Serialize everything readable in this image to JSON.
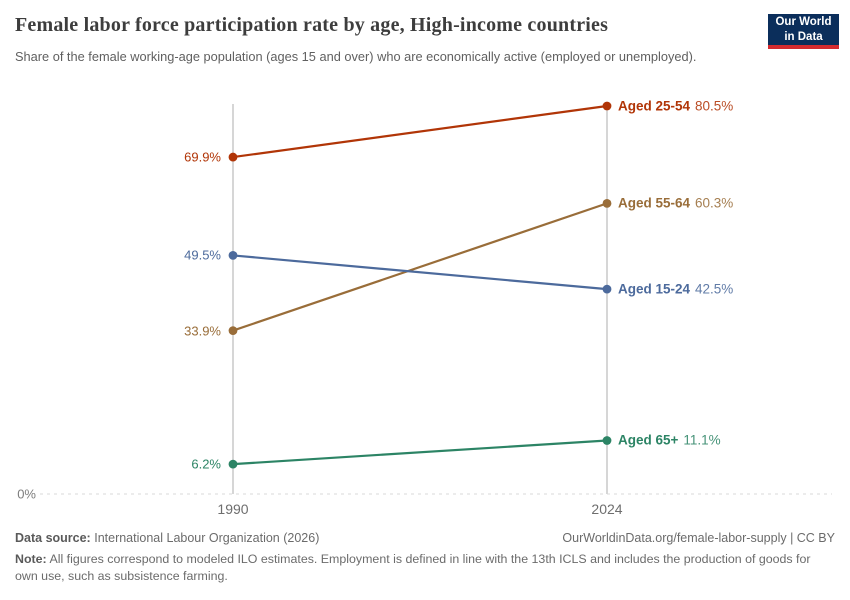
{
  "header": {
    "title": "Female labor force participation rate by age, High-income countries",
    "subtitle": "Share of the female working-age population (ages 15 and over) who are economically active (employed or unemployed)."
  },
  "logo": {
    "line1": "Our World",
    "line2": "in Data",
    "bg_color": "#0b2e5b",
    "bar_color": "#d42b2f"
  },
  "chart_data": {
    "type": "line",
    "variant": "slope",
    "title": "Female labor force participation rate by age, High-income countries",
    "x": [
      "1990",
      "2024"
    ],
    "xlabel": "",
    "ylabel": "",
    "ylim": [
      0,
      81
    ],
    "grid": "dashed baseline at 0% only",
    "legend_position": "labels at line ends",
    "y_axis_baseline_label": "0%",
    "series": [
      {
        "name": "Aged 25-54",
        "color": "#b13507",
        "values": [
          69.9,
          80.5
        ],
        "labels": [
          "69.9%",
          "80.5%"
        ]
      },
      {
        "name": "Aged 55-64",
        "color": "#996d39",
        "values": [
          33.9,
          60.3
        ],
        "labels": [
          "33.9%",
          "60.3%"
        ]
      },
      {
        "name": "Aged 15-24",
        "color": "#4c6a9c",
        "values": [
          49.5,
          42.5
        ],
        "labels": [
          "49.5%",
          "42.5%"
        ]
      },
      {
        "name": "Aged 65+",
        "color": "#2c8465",
        "values": [
          6.2,
          11.1
        ],
        "labels": [
          "6.2%",
          "11.1%"
        ]
      }
    ]
  },
  "footer": {
    "source_label": "Data source:",
    "source_value": "International Labour Organization (2026)",
    "credit": "OurWorldinData.org/female-labor-supply | CC BY",
    "note_label": "Note:",
    "note_value": "All figures correspond to modeled ILO estimates. Employment is defined in line with the 13th ICLS and includes the production of goods for own use, such as subsistence farming."
  }
}
